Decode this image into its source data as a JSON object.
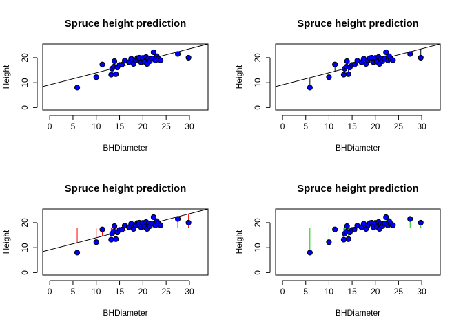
{
  "chart_data": [
    {
      "type": "scatter",
      "title": "Spruce height prediction",
      "xlabel": "BHDiameter",
      "ylabel": "Height",
      "xlim": [
        -1.5,
        34
      ],
      "ylim": [
        -1,
        25.5
      ],
      "xticks": [
        "0",
        "5",
        "10",
        "15",
        "20",
        "25",
        "30"
      ],
      "yticks": [
        "0",
        "10",
        "20"
      ],
      "point_fill": "#0000ff",
      "regression_line": {
        "intercept": 9.15,
        "slope": 0.481
      },
      "mean_line": null,
      "segments": "none"
    },
    {
      "type": "scatter",
      "title": "Spruce height prediction",
      "xlabel": "BHDiameter",
      "ylabel": "Height",
      "xlim": [
        -1.5,
        34
      ],
      "ylim": [
        -1,
        25.5
      ],
      "xticks": [
        "0",
        "5",
        "10",
        "15",
        "20",
        "25",
        "30"
      ],
      "yticks": [
        "0",
        "10",
        "20"
      ],
      "point_fill": "#0000ff",
      "regression_line": {
        "intercept": 9.15,
        "slope": 0.481
      },
      "mean_line": null,
      "segments": "residual",
      "segment_color": "#000000"
    },
    {
      "type": "scatter",
      "title": "Spruce height prediction",
      "xlabel": "BHDiameter",
      "ylabel": "Height",
      "xlim": [
        -1.5,
        34
      ],
      "ylim": [
        -1,
        25.5
      ],
      "xticks": [
        "0",
        "5",
        "10",
        "15",
        "20",
        "25",
        "30"
      ],
      "yticks": [
        "0",
        "10",
        "20"
      ],
      "point_fill": "#0000ff",
      "regression_line": {
        "intercept": 9.15,
        "slope": 0.481
      },
      "mean_line": 17.9,
      "segments": "fit-to-mean",
      "segment_color": "#ff0000"
    },
    {
      "type": "scatter",
      "title": "Spruce height prediction",
      "xlabel": "BHDiameter",
      "ylabel": "Height",
      "xlim": [
        -1.5,
        34
      ],
      "ylim": [
        -1,
        25.5
      ],
      "xticks": [
        "0",
        "5",
        "10",
        "15",
        "20",
        "25",
        "30"
      ],
      "yticks": [
        "0",
        "10",
        "20"
      ],
      "point_fill": "#0000ff",
      "regression_line": null,
      "mean_line": 17.9,
      "segments": "point-to-mean",
      "segment_color": "#00cc00"
    }
  ],
  "points": [
    {
      "x": 5.9,
      "y": 8.0
    },
    {
      "x": 10.0,
      "y": 12.2
    },
    {
      "x": 11.3,
      "y": 17.3
    },
    {
      "x": 13.2,
      "y": 13.2
    },
    {
      "x": 13.4,
      "y": 15.6
    },
    {
      "x": 13.8,
      "y": 16.4
    },
    {
      "x": 13.9,
      "y": 18.6
    },
    {
      "x": 14.2,
      "y": 13.4
    },
    {
      "x": 14.5,
      "y": 16.1
    },
    {
      "x": 15.0,
      "y": 17.1
    },
    {
      "x": 15.5,
      "y": 17.2
    },
    {
      "x": 16.1,
      "y": 18.8
    },
    {
      "x": 17.0,
      "y": 18.2
    },
    {
      "x": 17.5,
      "y": 19.6
    },
    {
      "x": 18.0,
      "y": 17.5
    },
    {
      "x": 18.4,
      "y": 19.0
    },
    {
      "x": 18.8,
      "y": 19.8
    },
    {
      "x": 19.2,
      "y": 20.0
    },
    {
      "x": 19.6,
      "y": 18.2
    },
    {
      "x": 20.0,
      "y": 19.9
    },
    {
      "x": 20.3,
      "y": 18.4
    },
    {
      "x": 20.7,
      "y": 20.3
    },
    {
      "x": 20.9,
      "y": 17.5
    },
    {
      "x": 21.2,
      "y": 19.6
    },
    {
      "x": 21.5,
      "y": 18.6
    },
    {
      "x": 22.0,
      "y": 19.7
    },
    {
      "x": 22.3,
      "y": 22.2
    },
    {
      "x": 22.7,
      "y": 18.9
    },
    {
      "x": 23.0,
      "y": 20.6
    },
    {
      "x": 23.3,
      "y": 19.6
    },
    {
      "x": 23.8,
      "y": 19.0
    },
    {
      "x": 27.5,
      "y": 21.5
    },
    {
      "x": 29.8,
      "y": 20.0
    }
  ]
}
